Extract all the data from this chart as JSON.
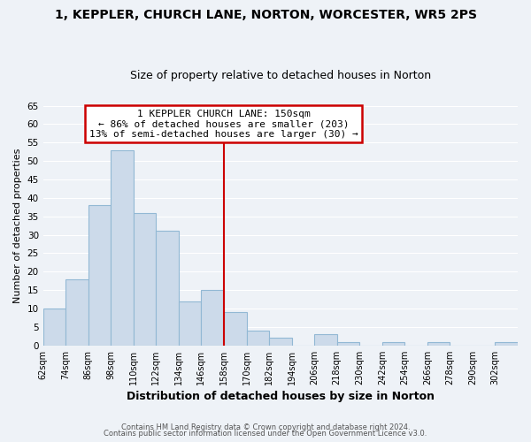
{
  "title": "1, KEPPLER, CHURCH LANE, NORTON, WORCESTER, WR5 2PS",
  "subtitle": "Size of property relative to detached houses in Norton",
  "xlabel": "Distribution of detached houses by size in Norton",
  "ylabel": "Number of detached properties",
  "footer_line1": "Contains HM Land Registry data © Crown copyright and database right 2024.",
  "footer_line2": "Contains public sector information licensed under the Open Government Licence v3.0.",
  "bin_labels": [
    "62sqm",
    "74sqm",
    "86sqm",
    "98sqm",
    "110sqm",
    "122sqm",
    "134sqm",
    "146sqm",
    "158sqm",
    "170sqm",
    "182sqm",
    "194sqm",
    "206sqm",
    "218sqm",
    "230sqm",
    "242sqm",
    "254sqm",
    "266sqm",
    "278sqm",
    "290sqm",
    "302sqm"
  ],
  "bar_heights": [
    10,
    18,
    38,
    53,
    36,
    31,
    12,
    15,
    9,
    4,
    2,
    0,
    3,
    1,
    0,
    1,
    0,
    1,
    0,
    0,
    1
  ],
  "bar_color": "#ccdaea",
  "bar_edge_color": "#92b8d4",
  "ylim": [
    0,
    65
  ],
  "yticks": [
    0,
    5,
    10,
    15,
    20,
    25,
    30,
    35,
    40,
    45,
    50,
    55,
    60,
    65
  ],
  "annotation_title": "1 KEPPLER CHURCH LANE: 150sqm",
  "annotation_line1": "← 86% of detached houses are smaller (203)",
  "annotation_line2": "13% of semi-detached houses are larger (30) →",
  "annotation_box_color": "#ffffff",
  "annotation_box_edgecolor": "#cc0000",
  "red_line_color": "#cc0000",
  "background_color": "#eef2f7",
  "grid_color": "#ffffff",
  "title_fontsize": 10,
  "subtitle_fontsize": 9
}
